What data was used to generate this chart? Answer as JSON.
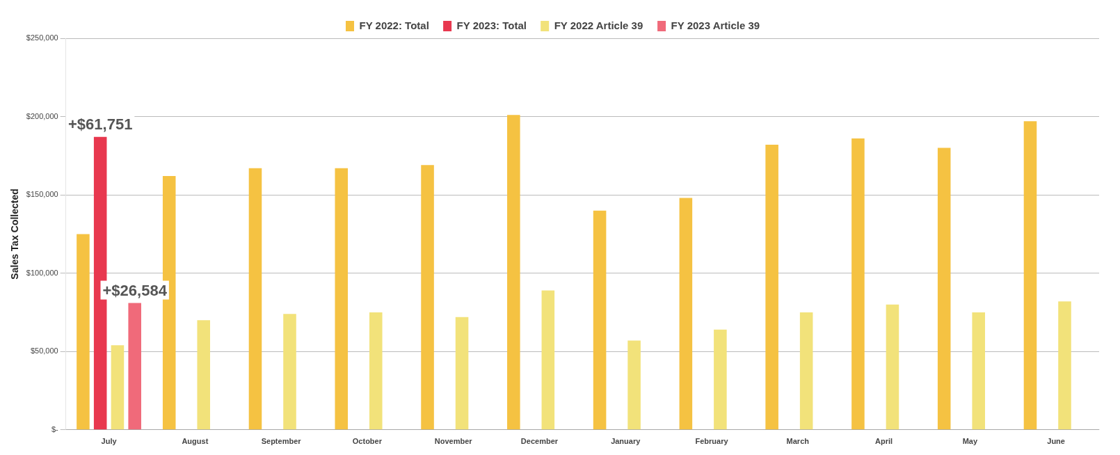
{
  "chart_data": {
    "type": "bar",
    "ylabel": "Sales Tax Collected",
    "categories": [
      "July",
      "August",
      "September",
      "October",
      "November",
      "December",
      "January",
      "February",
      "March",
      "April",
      "May",
      "June"
    ],
    "series": [
      {
        "name": "FY 2022: Total",
        "color": "#f5c242",
        "values": [
          125000,
          162000,
          167000,
          167000,
          169000,
          201000,
          140000,
          148000,
          182000,
          186000,
          180000,
          197000
        ]
      },
      {
        "name": "FY 2023: Total",
        "color": "#e8384f",
        "values": [
          187000,
          null,
          null,
          null,
          null,
          null,
          null,
          null,
          null,
          null,
          null,
          null
        ]
      },
      {
        "name": "FY 2022 Article 39",
        "color": "#f2e27a",
        "values": [
          54000,
          70000,
          74000,
          75000,
          72000,
          89000,
          57000,
          64000,
          75000,
          80000,
          75000,
          82000
        ]
      },
      {
        "name": "FY 2023 Article 39",
        "color": "#f06a7a",
        "values": [
          81000,
          null,
          null,
          null,
          null,
          null,
          null,
          null,
          null,
          null,
          null,
          null
        ]
      }
    ],
    "ylim": [
      0,
      250000
    ],
    "yticks": [
      {
        "value": 0,
        "label": "$-"
      },
      {
        "value": 50000,
        "label": "$50,000"
      },
      {
        "value": 100000,
        "label": "$100,000"
      },
      {
        "value": 150000,
        "label": "$150,000"
      },
      {
        "value": 200000,
        "label": "$200,000"
      },
      {
        "value": 250000,
        "label": "$250,000"
      }
    ],
    "grid": "y",
    "legend": "top",
    "annotations": [
      {
        "text": "+$61,751",
        "x": "July",
        "y": 187000
      },
      {
        "text": "+$26,584",
        "x": "July",
        "y": 81000
      }
    ]
  }
}
